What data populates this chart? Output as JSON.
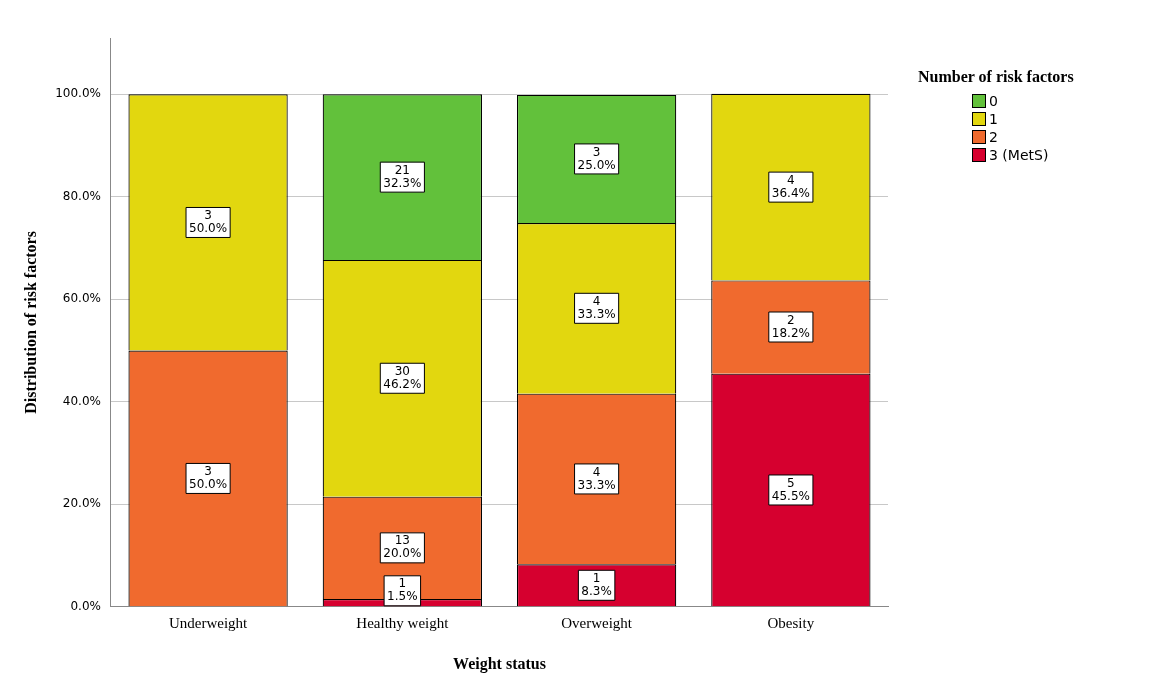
{
  "chart_data": {
    "type": "bar",
    "stacked": true,
    "xlabel": "Weight status",
    "ylabel": "Distribution of risk factors",
    "legend_title": "Number of risk factors",
    "legend": "top right",
    "grid": "y",
    "categories": [
      "Underweight",
      "Healthy weight",
      "Overweight",
      "Obesity"
    ],
    "ylim": [
      0,
      111
    ],
    "yticks": [
      {
        "value": 0,
        "label": "0.0%"
      },
      {
        "value": 20,
        "label": "20.0%"
      },
      {
        "value": 40,
        "label": "40.0%"
      },
      {
        "value": 60,
        "label": "60.0%"
      },
      {
        "value": 80,
        "label": "80.0%"
      },
      {
        "value": 100,
        "label": "100.0%"
      }
    ],
    "series": [
      {
        "name": "3 (MetS)",
        "color": "#d6002f",
        "values": [
          null,
          1.5,
          8.3,
          45.5
        ],
        "value_labels": [
          null,
          "1\n1.5%",
          "1\n8.3%",
          "5\n45.5%"
        ]
      },
      {
        "name": "2",
        "color": "#f06a2e",
        "values": [
          50.0,
          20.0,
          33.3,
          18.2
        ],
        "value_labels": [
          "3\n50.0%",
          "13\n20.0%",
          "4\n33.3%",
          "2\n18.2%"
        ]
      },
      {
        "name": "1",
        "color": "#e2d70f",
        "values": [
          50.0,
          46.2,
          33.3,
          36.4
        ],
        "value_labels": [
          "3\n50.0%",
          "30\n46.2%",
          "4\n33.3%",
          "4\n36.4%"
        ]
      },
      {
        "name": "0",
        "color": "#62c13b",
        "values": [
          null,
          32.3,
          25.0,
          null
        ],
        "value_labels": [
          null,
          "21\n32.3%",
          "3\n25.0%",
          null
        ]
      }
    ]
  }
}
